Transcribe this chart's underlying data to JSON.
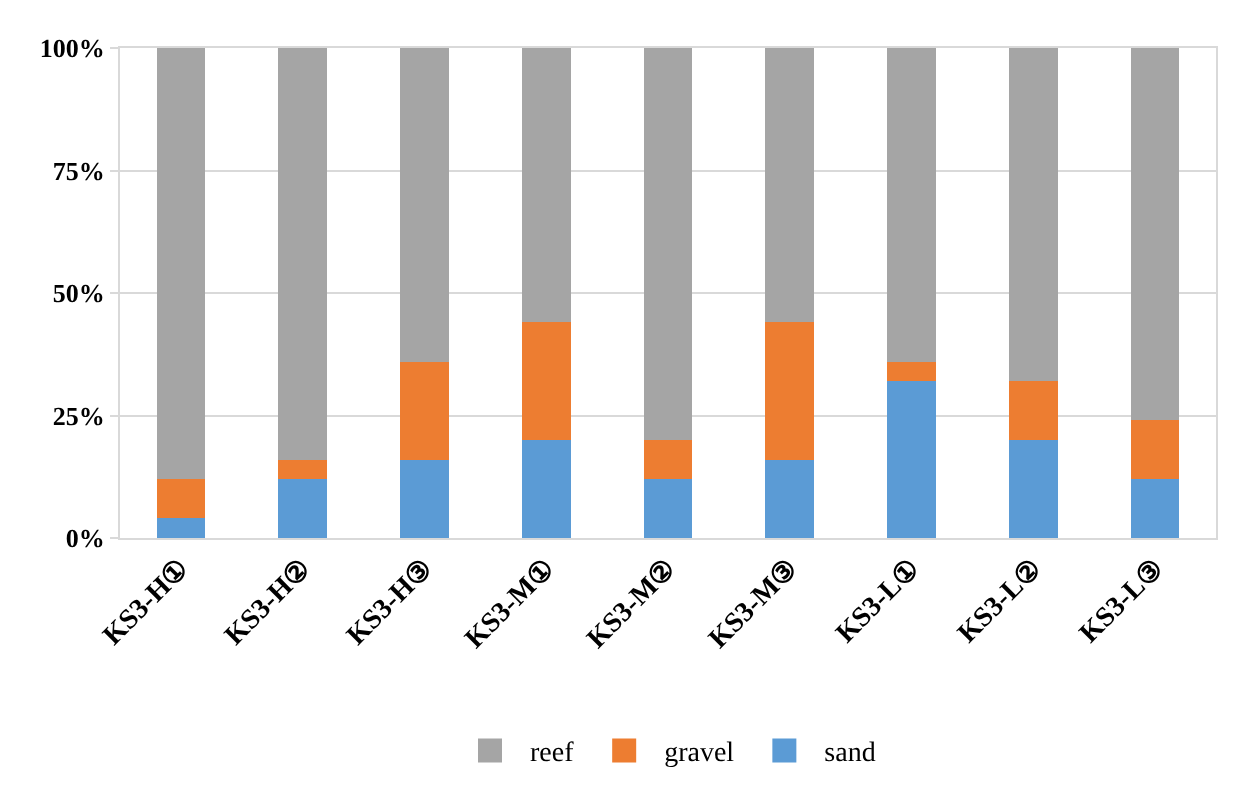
{
  "chart_data": {
    "type": "bar",
    "stacked": true,
    "categories": [
      "KS3-H①",
      "KS3-H②",
      "KS3-H③",
      "KS3-M①",
      "KS3-M②",
      "KS3-M③",
      "KS3-L①",
      "KS3-L②",
      "KS3-L③"
    ],
    "series": [
      {
        "name": "sand",
        "color": "#5b9bd5",
        "values": [
          4,
          12,
          16,
          20,
          12,
          16,
          32,
          20,
          12
        ]
      },
      {
        "name": "gravel",
        "color": "#ed7d31",
        "values": [
          8,
          4,
          20,
          24,
          8,
          28,
          4,
          12,
          12
        ]
      },
      {
        "name": "reef",
        "color": "#a5a5a5",
        "values": [
          88,
          84,
          64,
          56,
          80,
          56,
          64,
          68,
          76
        ]
      }
    ],
    "ylim": [
      0,
      100
    ],
    "yticks": [
      {
        "value": 0,
        "label": "0%"
      },
      {
        "value": 25,
        "label": "25%"
      },
      {
        "value": 50,
        "label": "50%"
      },
      {
        "value": 75,
        "label": "75%"
      },
      {
        "value": 100,
        "label": "100%"
      }
    ],
    "grid": "y",
    "legend": "bottom"
  }
}
